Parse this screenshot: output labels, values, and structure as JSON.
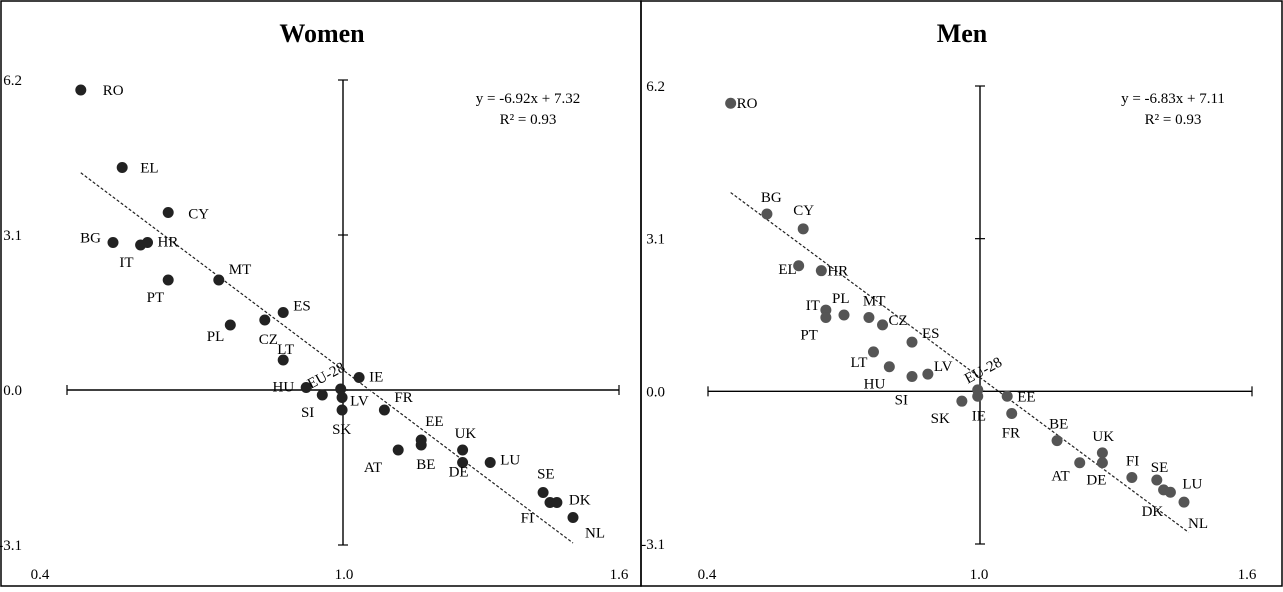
{
  "chart_data": [
    {
      "type": "scatter",
      "title": "Women",
      "xlim": [
        0.4,
        1.6
      ],
      "ylim": [
        -3.1,
        6.2
      ],
      "origin": [
        1.0,
        0.0
      ],
      "x_ticks": [
        "0.4",
        "1.0",
        "1.6"
      ],
      "y_ticks": [
        "-3.1",
        "0.0",
        "3.1",
        "6.2"
      ],
      "grid": false,
      "marker_color": "#222222",
      "points": [
        {
          "label": "RO",
          "x": 0.43,
          "y": 6.0
        },
        {
          "label": "EL",
          "x": 0.52,
          "y": 4.45
        },
        {
          "label": "CY",
          "x": 0.62,
          "y": 3.55
        },
        {
          "label": "BG",
          "x": 0.5,
          "y": 2.95
        },
        {
          "label": "IT",
          "x": 0.56,
          "y": 2.9
        },
        {
          "label": "HR",
          "x": 0.575,
          "y": 2.95
        },
        {
          "label": "PT",
          "x": 0.62,
          "y": 2.2
        },
        {
          "label": "MT",
          "x": 0.73,
          "y": 2.2
        },
        {
          "label": "ES",
          "x": 0.87,
          "y": 1.55
        },
        {
          "label": "CZ",
          "x": 0.83,
          "y": 1.4
        },
        {
          "label": "PL",
          "x": 0.755,
          "y": 1.3
        },
        {
          "label": "LT",
          "x": 0.87,
          "y": 0.6
        },
        {
          "label": "HU",
          "x": 0.92,
          "y": 0.05
        },
        {
          "label": "EU-28",
          "x": 0.995,
          "y": 0.02
        },
        {
          "label": "IE",
          "x": 1.035,
          "y": 0.25
        },
        {
          "label": "SI",
          "x": 0.955,
          "y": -0.1
        },
        {
          "label": "LV",
          "x": 0.998,
          "y": -0.15
        },
        {
          "label": "SK",
          "x": 0.998,
          "y": -0.4
        },
        {
          "label": "FR",
          "x": 1.09,
          "y": -0.4
        },
        {
          "label": "EE",
          "x": 1.17,
          "y": -1.0
        },
        {
          "label": "BE",
          "x": 1.17,
          "y": -1.1
        },
        {
          "label": "AT",
          "x": 1.12,
          "y": -1.2
        },
        {
          "label": "UK",
          "x": 1.26,
          "y": -1.2
        },
        {
          "label": "DE",
          "x": 1.26,
          "y": -1.45
        },
        {
          "label": "LU",
          "x": 1.32,
          "y": -1.45
        },
        {
          "label": "SE",
          "x": 1.435,
          "y": -2.05
        },
        {
          "label": "FI",
          "x": 1.45,
          "y": -2.25
        },
        {
          "label": "DK",
          "x": 1.465,
          "y": -2.25
        },
        {
          "label": "NL",
          "x": 1.5,
          "y": -2.55
        }
      ],
      "trendline": {
        "slope": -6.92,
        "intercept": 7.32,
        "x_range": [
          0.43,
          1.5
        ],
        "style": "dashed"
      },
      "equation": "y = -6.92x + 7.32",
      "r_squared": "R² = 0.93"
    },
    {
      "type": "scatter",
      "title": "Men",
      "xlim": [
        0.4,
        1.6
      ],
      "ylim": [
        -3.1,
        6.2
      ],
      "origin": [
        1.0,
        0.0
      ],
      "x_ticks": [
        "0.4",
        "1.0",
        "1.6"
      ],
      "y_ticks": [
        "-3.1",
        "0.0",
        "3.1",
        "6.2"
      ],
      "grid": false,
      "marker_color": "#555555",
      "points": [
        {
          "label": "RO",
          "x": 0.45,
          "y": 5.85
        },
        {
          "label": "BG",
          "x": 0.53,
          "y": 3.6
        },
        {
          "label": "CY",
          "x": 0.61,
          "y": 3.3
        },
        {
          "label": "EL",
          "x": 0.6,
          "y": 2.55
        },
        {
          "label": "HR",
          "x": 0.65,
          "y": 2.45
        },
        {
          "label": "IT",
          "x": 0.66,
          "y": 1.65
        },
        {
          "label": "PT",
          "x": 0.66,
          "y": 1.5
        },
        {
          "label": "PL",
          "x": 0.7,
          "y": 1.55
        },
        {
          "label": "MT",
          "x": 0.755,
          "y": 1.5
        },
        {
          "label": "CZ",
          "x": 0.785,
          "y": 1.35
        },
        {
          "label": "ES",
          "x": 0.85,
          "y": 1.0
        },
        {
          "label": "LT",
          "x": 0.765,
          "y": 0.8
        },
        {
          "label": "LV",
          "x": 0.885,
          "y": 0.35
        },
        {
          "label": "HU",
          "x": 0.8,
          "y": 0.5
        },
        {
          "label": "SI",
          "x": 0.85,
          "y": 0.3
        },
        {
          "label": "EU-28",
          "x": 0.995,
          "y": 0.03
        },
        {
          "label": "SK",
          "x": 0.96,
          "y": -0.2
        },
        {
          "label": "IE",
          "x": 0.995,
          "y": -0.1
        },
        {
          "label": "EE",
          "x": 1.06,
          "y": -0.1
        },
        {
          "label": "FR",
          "x": 1.07,
          "y": -0.45
        },
        {
          "label": "BE",
          "x": 1.17,
          "y": -1.0
        },
        {
          "label": "UK",
          "x": 1.27,
          "y": -1.25
        },
        {
          "label": "AT",
          "x": 1.22,
          "y": -1.45
        },
        {
          "label": "DE",
          "x": 1.27,
          "y": -1.45
        },
        {
          "label": "FI",
          "x": 1.335,
          "y": -1.75
        },
        {
          "label": "SE",
          "x": 1.39,
          "y": -1.8
        },
        {
          "label": "DK",
          "x": 1.405,
          "y": -2.0
        },
        {
          "label": "LU",
          "x": 1.42,
          "y": -2.05
        },
        {
          "label": "NL",
          "x": 1.45,
          "y": -2.25
        }
      ],
      "trendline": {
        "slope": -6.83,
        "intercept": 7.11,
        "x_range": [
          0.45,
          1.46
        ],
        "style": "dashed"
      },
      "equation": "y = -6.83x + 7.11",
      "r_squared": "R² = 0.93"
    }
  ]
}
